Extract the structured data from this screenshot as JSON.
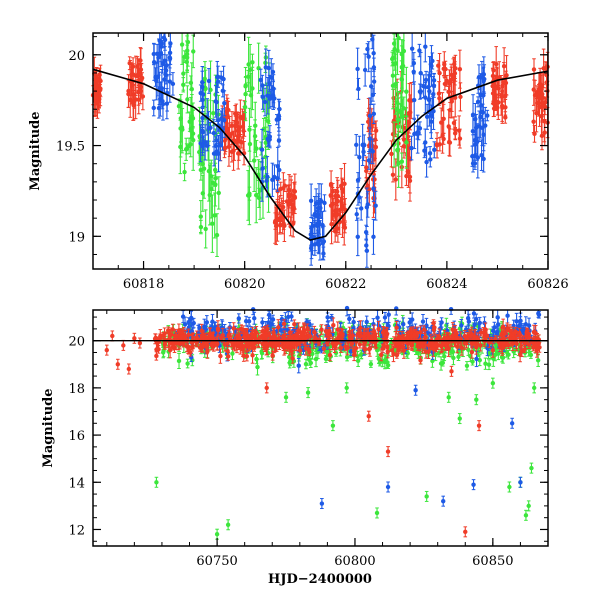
{
  "colors": {
    "red": "#f03c28",
    "green": "#3ce63c",
    "blue": "#1e5ae6",
    "model": "#000000"
  },
  "chart_data": [
    {
      "type": "scatter",
      "title": "",
      "xlabel": "",
      "ylabel": "Magnitude",
      "xlim": [
        60817,
        60826
      ],
      "ylim": [
        20.12,
        18.82
      ],
      "y_inverted": true,
      "grid": false,
      "x_ticks": [
        60818,
        60820,
        60822,
        60824,
        60826
      ],
      "y_ticks": [
        19,
        19.5,
        20
      ],
      "model_curve": {
        "type": "line",
        "description_free": true,
        "x": [
          60817.0,
          60818.0,
          60819.0,
          60819.5,
          60820.0,
          60820.5,
          60821.0,
          60821.3,
          60821.6,
          60822.0,
          60822.5,
          60823.0,
          60823.5,
          60824.0,
          60825.0,
          60826.0
        ],
        "y": [
          19.92,
          19.84,
          19.71,
          19.6,
          19.44,
          19.22,
          19.03,
          18.98,
          19.0,
          19.13,
          19.34,
          19.53,
          19.66,
          19.76,
          19.86,
          19.91
        ]
      },
      "series": [
        {
          "color": "red",
          "clusters": [
            {
              "x": [
                60817.0,
                60817.15
              ],
              "y": [
                19.72,
                19.92
              ]
            },
            {
              "x": [
                60817.7,
                60818.0
              ],
              "y": [
                19.72,
                19.97
              ]
            },
            {
              "x": [
                60819.5,
                60820.0
              ],
              "y": [
                19.45,
                19.7
              ]
            },
            {
              "x": [
                60820.6,
                60821.0
              ],
              "y": [
                19.05,
                19.3
              ]
            },
            {
              "x": [
                60821.7,
                60822.0
              ],
              "y": [
                19.0,
                19.3
              ]
            },
            {
              "x": [
                60822.4,
                60822.6
              ],
              "y": [
                19.2,
                19.7
              ]
            },
            {
              "x": [
                60822.9,
                60823.3
              ],
              "y": [
                19.3,
                19.8
              ]
            },
            {
              "x": [
                60823.8,
                60824.3
              ],
              "y": [
                19.5,
                20.0
              ]
            },
            {
              "x": [
                60824.9,
                60825.2
              ],
              "y": [
                19.65,
                19.95
              ]
            },
            {
              "x": [
                60825.7,
                60826.0
              ],
              "y": [
                19.55,
                19.95
              ]
            }
          ]
        },
        {
          "color": "green",
          "clusters": [
            {
              "x": [
                60818.7,
                60819.0
              ],
              "y": [
                19.3,
                20.1
              ]
            },
            {
              "x": [
                60819.1,
                60819.5
              ],
              "y": [
                19.0,
                19.9
              ]
            },
            {
              "x": [
                60820.0,
                60820.5
              ],
              "y": [
                19.2,
                20.0
              ]
            },
            {
              "x": [
                60822.9,
                60823.2
              ],
              "y": [
                19.4,
                20.1
              ]
            }
          ]
        },
        {
          "color": "blue",
          "clusters": [
            {
              "x": [
                60818.2,
                60818.6
              ],
              "y": [
                19.7,
                20.1
              ]
            },
            {
              "x": [
                60819.1,
                60819.6
              ],
              "y": [
                19.45,
                19.9
              ]
            },
            {
              "x": [
                60820.3,
                60820.7
              ],
              "y": [
                19.3,
                19.95
              ]
            },
            {
              "x": [
                60821.3,
                60821.6
              ],
              "y": [
                18.9,
                19.2
              ]
            },
            {
              "x": [
                60822.2,
                60822.6
              ],
              "y": [
                18.9,
                20.1
              ]
            },
            {
              "x": [
                60823.3,
                60823.8
              ],
              "y": [
                19.4,
                20.05
              ]
            },
            {
              "x": [
                60824.5,
                60824.8
              ],
              "y": [
                19.4,
                19.9
              ]
            }
          ]
        }
      ]
    },
    {
      "type": "scatter",
      "title": "",
      "xlabel": "HJD−2400000",
      "ylabel": "Magnitude",
      "xlim": [
        60705,
        60870
      ],
      "ylim": [
        21.3,
        11.3
      ],
      "y_inverted": true,
      "grid": false,
      "x_ticks": [
        60750,
        60800,
        60850
      ],
      "y_ticks": [
        12,
        14,
        16,
        18,
        20
      ],
      "reference_line_y": 20,
      "series": [
        {
          "color": "red",
          "base_band": {
            "x": [
              60727,
              60867
            ],
            "y": [
              19.5,
              20.5
            ]
          },
          "early_points": {
            "x": [
              60710,
              60712,
              60714,
              60716,
              60718,
              60720,
              60722
            ],
            "y": [
              19.6,
              20.2,
              19.0,
              19.8,
              18.8,
              20.1,
              19.9
            ]
          },
          "outliers": {
            "x": [
              60768,
              60805,
              60812,
              60835,
              60840,
              60845
            ],
            "y": [
              18.0,
              16.8,
              15.3,
              18.7,
              11.9,
              16.4
            ]
          }
        },
        {
          "color": "green",
          "base_band": {
            "x": [
              60730,
              60867
            ],
            "y": [
              19.2,
              20.6
            ]
          },
          "outliers": {
            "x": [
              60728,
              60750,
              60754,
              60775,
              60783,
              60792,
              60797,
              60808,
              60826,
              60834,
              60838,
              60844,
              60850,
              60856,
              60860,
              60862,
              60863,
              60864,
              60865
            ],
            "y": [
              14.0,
              11.8,
              12.2,
              17.6,
              17.8,
              16.4,
              18.0,
              12.7,
              13.4,
              17.6,
              16.7,
              17.5,
              18.2,
              13.8,
              14.0,
              12.6,
              13.0,
              14.6,
              18.0
            ]
          },
          "upper_branch": {
            "x": [
              60780,
              60790,
              60800,
              60810,
              60820,
              60830,
              60840,
              60850
            ],
            "y": [
              18.1,
              18.3,
              18.6,
              18.0,
              18.4,
              18.2,
              18.1,
              18.0
            ]
          }
        },
        {
          "color": "blue",
          "base_band": {
            "x": [
              60735,
              60867
            ],
            "y": [
              19.6,
              21.1
            ]
          },
          "outliers": {
            "x": [
              60788,
              60812,
              60822,
              60832,
              60843,
              60857,
              60860
            ],
            "y": [
              13.1,
              13.8,
              17.9,
              13.2,
              13.9,
              16.5,
              14.0
            ]
          }
        }
      ]
    }
  ]
}
